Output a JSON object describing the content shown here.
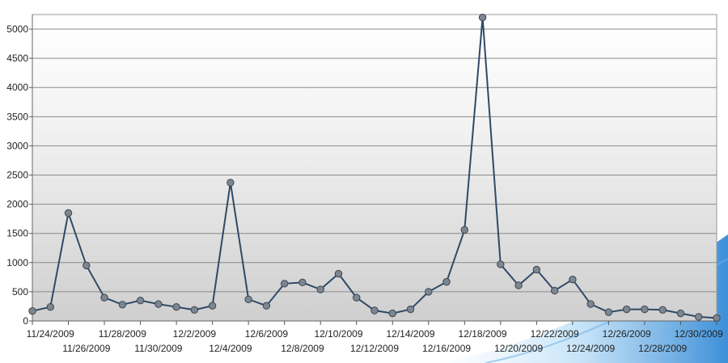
{
  "chart_data": {
    "type": "line",
    "x": [
      "11/23/2009",
      "11/24/2009",
      "11/25/2009",
      "11/26/2009",
      "11/27/2009",
      "11/28/2009",
      "11/29/2009",
      "11/30/2009",
      "12/1/2009",
      "12/2/2009",
      "12/3/2009",
      "12/4/2009",
      "12/5/2009",
      "12/6/2009",
      "12/7/2009",
      "12/8/2009",
      "12/9/2009",
      "12/10/2009",
      "12/11/2009",
      "12/12/2009",
      "12/13/2009",
      "12/14/2009",
      "12/15/2009",
      "12/16/2009",
      "12/17/2009",
      "12/18/2009",
      "12/19/2009",
      "12/20/2009",
      "12/21/2009",
      "12/22/2009",
      "12/23/2009",
      "12/24/2009",
      "12/25/2009",
      "12/26/2009",
      "12/27/2009",
      "12/28/2009",
      "12/29/2009",
      "12/30/2009",
      "12/31/2009"
    ],
    "series": [
      {
        "values": [
          170,
          240,
          1850,
          950,
          400,
          280,
          350,
          290,
          240,
          190,
          260,
          2370,
          370,
          260,
          640,
          660,
          540,
          810,
          400,
          180,
          130,
          200,
          500,
          670,
          1560,
          5200,
          970,
          610,
          880,
          520,
          710,
          290,
          150,
          200,
          200,
          190,
          130,
          70,
          50
        ]
      }
    ],
    "x_tick_labels": [
      "11/24/2009",
      "11/26/2009",
      "11/28/2009",
      "11/30/2009",
      "12/2/2009",
      "12/4/2009",
      "12/6/2009",
      "12/8/2009",
      "12/10/2009",
      "12/12/2009",
      "12/14/2009",
      "12/16/2009",
      "12/18/2009",
      "12/20/2009",
      "12/22/2009",
      "12/24/2009",
      "12/26/2009",
      "12/28/2009",
      "12/30/2009"
    ],
    "y_ticks": [
      "0",
      "500",
      "1000",
      "1500",
      "2000",
      "2500",
      "3000",
      "3500",
      "4000",
      "4500",
      "5000"
    ],
    "ylim": [
      0,
      5250
    ],
    "grid": true,
    "title": "",
    "xlabel": "",
    "ylabel": "",
    "colors": {
      "line": "#2f4a66",
      "marker": "#7d8791",
      "grid": "#8a8a8a",
      "plot_top": "#ffffff",
      "plot_bottom": "#cfcfcf"
    }
  }
}
